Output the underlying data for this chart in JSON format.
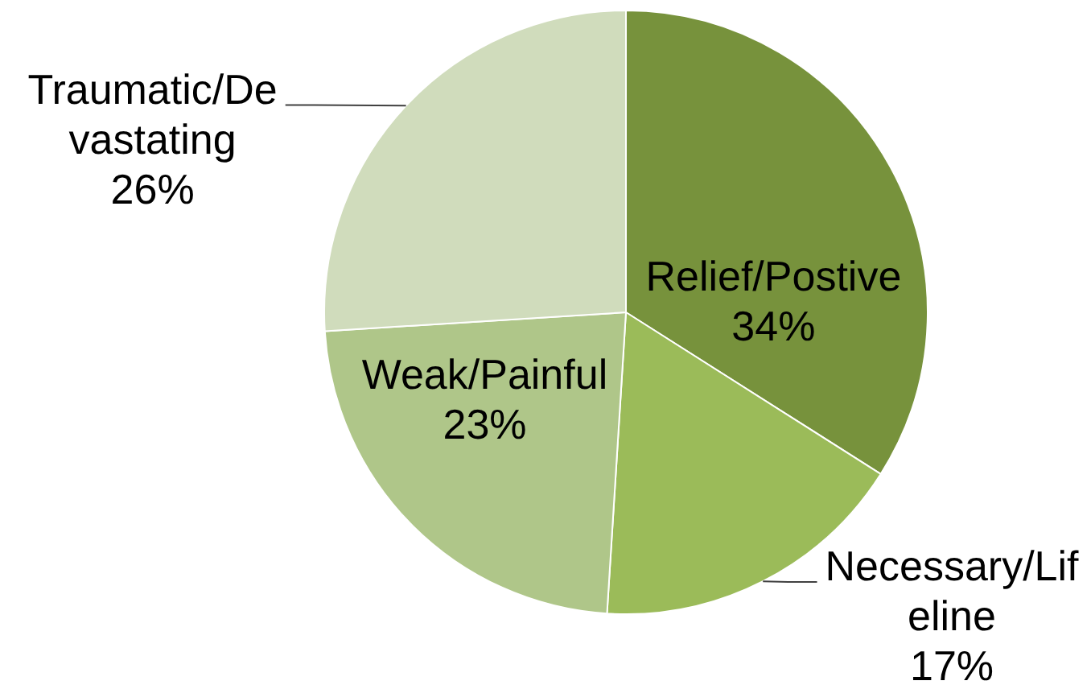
{
  "chart_data": {
    "type": "pie",
    "categories": [
      "Relief/Postive",
      "Necessary/Lifeline",
      "Weak/Painful",
      "Traumatic/Devastating"
    ],
    "values": [
      34,
      17,
      23,
      26
    ],
    "colors": [
      "#77923c",
      "#9bbb59",
      "#afc689",
      "#d0dcbc"
    ],
    "value_labels": [
      "34%",
      "17%",
      "23%",
      "26%"
    ]
  }
}
